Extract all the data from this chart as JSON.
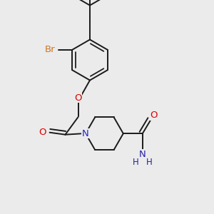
{
  "background_color": "#ebebeb",
  "bond_color": "#1a1a1a",
  "bond_width": 1.4,
  "fig_width": 3.0,
  "fig_height": 3.0,
  "dpi": 100,
  "xlim": [
    0,
    10
  ],
  "ylim": [
    0,
    10
  ]
}
